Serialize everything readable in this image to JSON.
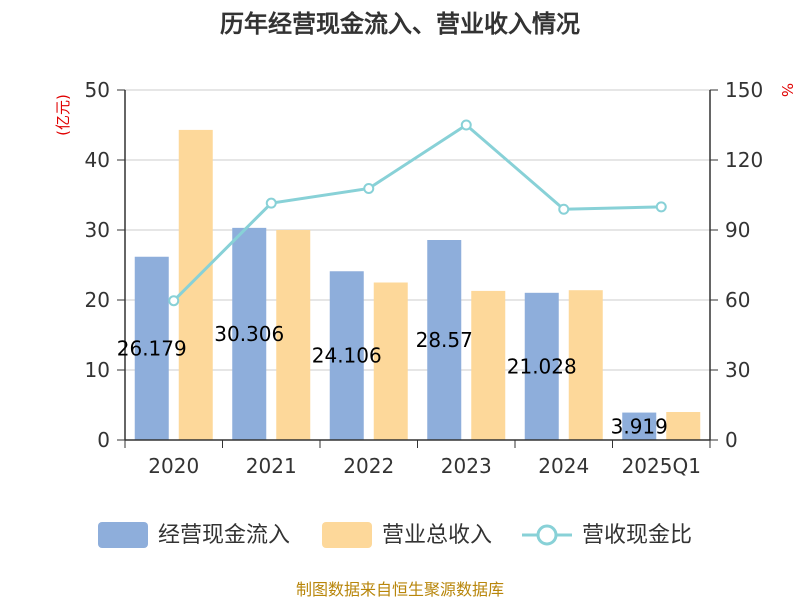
{
  "chart_data": {
    "type": "bar",
    "title": "历年经营现金流入、营业收入情况",
    "left_unit": "(亿元)",
    "right_unit": "%",
    "categories": [
      "2020",
      "2021",
      "2022",
      "2023",
      "2024",
      "2025Q1"
    ],
    "left_ticks": [
      "0",
      "10",
      "20",
      "30",
      "40",
      "50"
    ],
    "right_ticks": [
      "0",
      "30",
      "60",
      "90",
      "120",
      "150"
    ],
    "ylim_left": [
      0,
      50
    ],
    "ylim_right": [
      0,
      150
    ],
    "series": [
      {
        "name": "经营现金流入",
        "type": "bar",
        "axis": "left",
        "color": "#8eaedb",
        "values": [
          26.179,
          30.306,
          24.106,
          28.57,
          21.028,
          3.919
        ],
        "labels": [
          "26.179",
          "30.306",
          "24.106",
          "28.57",
          "21.028",
          "3.919"
        ]
      },
      {
        "name": "营业总收入",
        "type": "bar",
        "axis": "left",
        "color": "#fdd89a",
        "values": [
          44.3,
          30.0,
          22.5,
          21.3,
          21.4,
          4.0
        ]
      },
      {
        "name": "营收现金比",
        "type": "line",
        "axis": "right",
        "color": "#88d1d7",
        "values": [
          59.7,
          101.5,
          107.8,
          135.0,
          98.9,
          99.9
        ]
      }
    ],
    "grid": true,
    "legend_position": "bottom"
  },
  "footer": "制图数据来自恒生聚源数据库"
}
